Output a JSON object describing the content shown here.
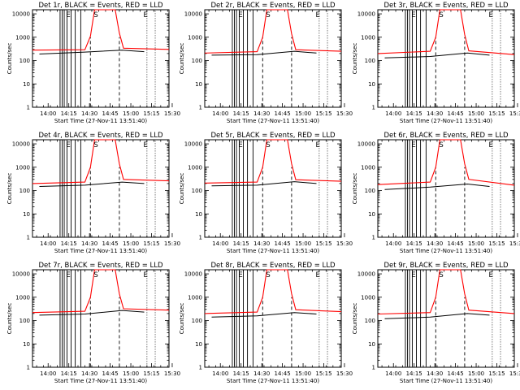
{
  "chart_data": [
    {
      "type": "line",
      "title": "Det 1r, BLACK = Events, RED = LLD",
      "xlabel": "Start Time (27-Nov-11 13:51:40)",
      "ylabel": "Counts/sec",
      "yscale": "log",
      "ylim": [
        1,
        15000
      ],
      "xlim_minutes": [
        -3,
        96
      ],
      "xtick_labels": [
        "14:00",
        "14:15",
        "14:30",
        "14:45",
        "15:00",
        "15:15",
        "15:30"
      ],
      "ytick_labels": [
        "1",
        "10",
        "100",
        "1000",
        "10000"
      ],
      "markers": [
        "E",
        "S",
        "E"
      ],
      "series": [
        {
          "color": "#ff0000",
          "values": [
            {
              "x": -3,
              "y": 280
            },
            {
              "x": 35,
              "y": 290
            },
            {
              "x": 39,
              "y": 1100
            },
            {
              "x": 42,
              "y": 15000
            },
            {
              "x": 57,
              "y": 15000
            },
            {
              "x": 60,
              "y": 1500
            },
            {
              "x": 63,
              "y": 340
            },
            {
              "x": 96,
              "y": 300
            }
          ]
        },
        {
          "color": "#000000",
          "values": [
            {
              "x": 2,
              "y": 190
            },
            {
              "x": 35,
              "y": 230
            },
            {
              "x": 62,
              "y": 280
            },
            {
              "x": 78,
              "y": 240
            }
          ]
        }
      ]
    },
    {
      "type": "line",
      "title": "Det 2r, BLACK = Events, RED = LLD",
      "xlabel": "Start Time (27-Nov-11 13:51:40)",
      "ylabel": "Counts/sec",
      "yscale": "log",
      "ylim": [
        1,
        15000
      ],
      "xlim_minutes": [
        -3,
        96
      ],
      "xtick_labels": [
        "14:00",
        "14:15",
        "14:30",
        "14:45",
        "15:00",
        "15:15",
        "15:30"
      ],
      "ytick_labels": [
        "1",
        "10",
        "100",
        "1000",
        "10000"
      ],
      "markers": [
        "E",
        "S",
        "E"
      ],
      "series": [
        {
          "color": "#ff0000",
          "values": [
            {
              "x": -3,
              "y": 210
            },
            {
              "x": 35,
              "y": 240
            },
            {
              "x": 39,
              "y": 1000
            },
            {
              "x": 42,
              "y": 15000
            },
            {
              "x": 57,
              "y": 15000
            },
            {
              "x": 60,
              "y": 1400
            },
            {
              "x": 63,
              "y": 290
            },
            {
              "x": 96,
              "y": 250
            }
          ]
        },
        {
          "color": "#000000",
          "values": [
            {
              "x": 2,
              "y": 170
            },
            {
              "x": 35,
              "y": 180
            },
            {
              "x": 62,
              "y": 250
            },
            {
              "x": 78,
              "y": 210
            }
          ]
        }
      ]
    },
    {
      "type": "line",
      "title": "Det 3r, BLACK = Events, RED = LLD",
      "xlabel": "Start Time (27-Nov-11 13:51:40)",
      "ylabel": "Counts/sec",
      "yscale": "log",
      "ylim": [
        1,
        15000
      ],
      "xlim_minutes": [
        -3,
        96
      ],
      "xtick_labels": [
        "14:00",
        "14:15",
        "14:30",
        "14:45",
        "15:00",
        "15:15",
        "15:30"
      ],
      "ytick_labels": [
        "1",
        "10",
        "100",
        "1000",
        "10000"
      ],
      "markers": [
        "E",
        "S",
        "E"
      ],
      "series": [
        {
          "color": "#ff0000",
          "values": [
            {
              "x": -3,
              "y": 200
            },
            {
              "x": 35,
              "y": 250
            },
            {
              "x": 39,
              "y": 1000
            },
            {
              "x": 42,
              "y": 15000
            },
            {
              "x": 57,
              "y": 15000
            },
            {
              "x": 60,
              "y": 1300
            },
            {
              "x": 63,
              "y": 260
            },
            {
              "x": 96,
              "y": 180
            }
          ]
        },
        {
          "color": "#000000",
          "values": [
            {
              "x": 2,
              "y": 130
            },
            {
              "x": 35,
              "y": 150
            },
            {
              "x": 62,
              "y": 210
            },
            {
              "x": 78,
              "y": 170
            }
          ]
        }
      ]
    },
    {
      "type": "line",
      "title": "Det 4r, BLACK = Events, RED = LLD",
      "xlabel": "Start Time (27-Nov-11 13:51:40)",
      "ylabel": "Counts/sec",
      "yscale": "log",
      "ylim": [
        1,
        15000
      ],
      "xlim_minutes": [
        -3,
        96
      ],
      "xtick_labels": [
        "14:00",
        "14:15",
        "14:30",
        "14:45",
        "15:00",
        "15:15",
        "15:30"
      ],
      "ytick_labels": [
        "1",
        "10",
        "100",
        "1000",
        "10000"
      ],
      "markers": [
        "E",
        "S",
        "E"
      ],
      "series": [
        {
          "color": "#ff0000",
          "values": [
            {
              "x": -3,
              "y": 200
            },
            {
              "x": 35,
              "y": 230
            },
            {
              "x": 39,
              "y": 1000
            },
            {
              "x": 42,
              "y": 15000
            },
            {
              "x": 57,
              "y": 15000
            },
            {
              "x": 60,
              "y": 1400
            },
            {
              "x": 63,
              "y": 300
            },
            {
              "x": 96,
              "y": 260
            }
          ]
        },
        {
          "color": "#000000",
          "values": [
            {
              "x": 2,
              "y": 150
            },
            {
              "x": 35,
              "y": 170
            },
            {
              "x": 62,
              "y": 230
            },
            {
              "x": 78,
              "y": 200
            }
          ]
        }
      ]
    },
    {
      "type": "line",
      "title": "Det 5r, BLACK = Events, RED = LLD",
      "xlabel": "Start Time (27-Nov-11 13:51:40)",
      "ylabel": "Counts/sec",
      "yscale": "log",
      "ylim": [
        1,
        15000
      ],
      "xlim_minutes": [
        -3,
        96
      ],
      "xtick_labels": [
        "14:00",
        "14:15",
        "14:30",
        "14:45",
        "15:00",
        "15:15",
        "15:30"
      ],
      "ytick_labels": [
        "1",
        "10",
        "100",
        "1000",
        "10000"
      ],
      "markers": [
        "E",
        "S",
        "E"
      ],
      "series": [
        {
          "color": "#ff0000",
          "values": [
            {
              "x": -3,
              "y": 210
            },
            {
              "x": 35,
              "y": 230
            },
            {
              "x": 39,
              "y": 1000
            },
            {
              "x": 42,
              "y": 15000
            },
            {
              "x": 57,
              "y": 15000
            },
            {
              "x": 60,
              "y": 1400
            },
            {
              "x": 63,
              "y": 290
            },
            {
              "x": 96,
              "y": 250
            }
          ]
        },
        {
          "color": "#000000",
          "values": [
            {
              "x": 2,
              "y": 160
            },
            {
              "x": 35,
              "y": 170
            },
            {
              "x": 62,
              "y": 240
            },
            {
              "x": 78,
              "y": 200
            }
          ]
        }
      ]
    },
    {
      "type": "line",
      "title": "Det 6r, BLACK = Events, RED = LLD",
      "xlabel": "Start Time (27-Nov-11 13:51:40)",
      "ylabel": "Counts/sec",
      "yscale": "log",
      "ylim": [
        1,
        15000
      ],
      "xlim_minutes": [
        -3,
        96
      ],
      "xtick_labels": [
        "14:00",
        "14:15",
        "14:30",
        "14:45",
        "15:00",
        "15:15",
        "15:30"
      ],
      "ytick_labels": [
        "1",
        "10",
        "100",
        "1000",
        "10000"
      ],
      "markers": [
        "E",
        "S",
        "E"
      ],
      "series": [
        {
          "color": "#ff0000",
          "values": [
            {
              "x": -3,
              "y": 180
            },
            {
              "x": 35,
              "y": 230
            },
            {
              "x": 39,
              "y": 1000
            },
            {
              "x": 42,
              "y": 15000
            },
            {
              "x": 57,
              "y": 15000
            },
            {
              "x": 60,
              "y": 1400
            },
            {
              "x": 63,
              "y": 300
            },
            {
              "x": 96,
              "y": 170
            }
          ]
        },
        {
          "color": "#000000",
          "values": [
            {
              "x": 2,
              "y": 110
            },
            {
              "x": 35,
              "y": 140
            },
            {
              "x": 62,
              "y": 190
            },
            {
              "x": 78,
              "y": 150
            }
          ]
        }
      ]
    },
    {
      "type": "line",
      "title": "Det 7r, BLACK = Events, RED = LLD",
      "xlabel": "Start Time (27-Nov-11 13:51:40)",
      "ylabel": "Counts/sec",
      "yscale": "log",
      "ylim": [
        1,
        15000
      ],
      "xlim_minutes": [
        -3,
        96
      ],
      "xtick_labels": [
        "14:00",
        "14:15",
        "14:30",
        "14:45",
        "15:00",
        "15:15",
        "15:30"
      ],
      "ytick_labels": [
        "1",
        "10",
        "100",
        "1000",
        "10000"
      ],
      "markers": [
        "E",
        "S",
        "E"
      ],
      "series": [
        {
          "color": "#ff0000",
          "values": [
            {
              "x": -3,
              "y": 220
            },
            {
              "x": 35,
              "y": 250
            },
            {
              "x": 39,
              "y": 1000
            },
            {
              "x": 42,
              "y": 15000
            },
            {
              "x": 57,
              "y": 15000
            },
            {
              "x": 60,
              "y": 1400
            },
            {
              "x": 63,
              "y": 320
            },
            {
              "x": 96,
              "y": 280
            }
          ]
        },
        {
          "color": "#000000",
          "values": [
            {
              "x": 2,
              "y": 170
            },
            {
              "x": 35,
              "y": 190
            },
            {
              "x": 62,
              "y": 270
            },
            {
              "x": 78,
              "y": 230
            }
          ]
        }
      ]
    },
    {
      "type": "line",
      "title": "Det 8r, BLACK = Events, RED = LLD",
      "xlabel": "Start Time (27-Nov-11 13:51:40)",
      "ylabel": "Counts/sec",
      "yscale": "log",
      "ylim": [
        1,
        15000
      ],
      "xlim_minutes": [
        -3,
        96
      ],
      "xtick_labels": [
        "14:00",
        "14:15",
        "14:30",
        "14:45",
        "15:00",
        "15:15",
        "15:30"
      ],
      "ytick_labels": [
        "1",
        "10",
        "100",
        "1000",
        "10000"
      ],
      "markers": [
        "E",
        "S",
        "E"
      ],
      "series": [
        {
          "color": "#ff0000",
          "values": [
            {
              "x": -3,
              "y": 200
            },
            {
              "x": 35,
              "y": 230
            },
            {
              "x": 39,
              "y": 1000
            },
            {
              "x": 42,
              "y": 15000
            },
            {
              "x": 57,
              "y": 15000
            },
            {
              "x": 60,
              "y": 1400
            },
            {
              "x": 63,
              "y": 290
            },
            {
              "x": 96,
              "y": 240
            }
          ]
        },
        {
          "color": "#000000",
          "values": [
            {
              "x": 2,
              "y": 140
            },
            {
              "x": 35,
              "y": 160
            },
            {
              "x": 62,
              "y": 220
            },
            {
              "x": 78,
              "y": 190
            }
          ]
        }
      ]
    },
    {
      "type": "line",
      "title": "Det 9r, BLACK = Events, RED = LLD",
      "xlabel": "Start Time (27-Nov-11 13:51:40)",
      "ylabel": "Counts/sec",
      "yscale": "log",
      "ylim": [
        1,
        15000
      ],
      "xlim_minutes": [
        -3,
        96
      ],
      "xtick_labels": [
        "14:00",
        "14:15",
        "14:30",
        "14:45",
        "15:00",
        "15:15",
        "15:30"
      ],
      "ytick_labels": [
        "1",
        "10",
        "100",
        "1000",
        "10000"
      ],
      "markers": [
        "E",
        "S",
        "E"
      ],
      "series": [
        {
          "color": "#ff0000",
          "values": [
            {
              "x": -3,
              "y": 190
            },
            {
              "x": 35,
              "y": 220
            },
            {
              "x": 39,
              "y": 1000
            },
            {
              "x": 42,
              "y": 15000
            },
            {
              "x": 57,
              "y": 15000
            },
            {
              "x": 60,
              "y": 1400
            },
            {
              "x": 63,
              "y": 280
            },
            {
              "x": 96,
              "y": 200
            }
          ]
        },
        {
          "color": "#000000",
          "values": [
            {
              "x": 2,
              "y": 120
            },
            {
              "x": 35,
              "y": 140
            },
            {
              "x": 62,
              "y": 200
            },
            {
              "x": 78,
              "y": 170
            }
          ]
        }
      ]
    }
  ]
}
